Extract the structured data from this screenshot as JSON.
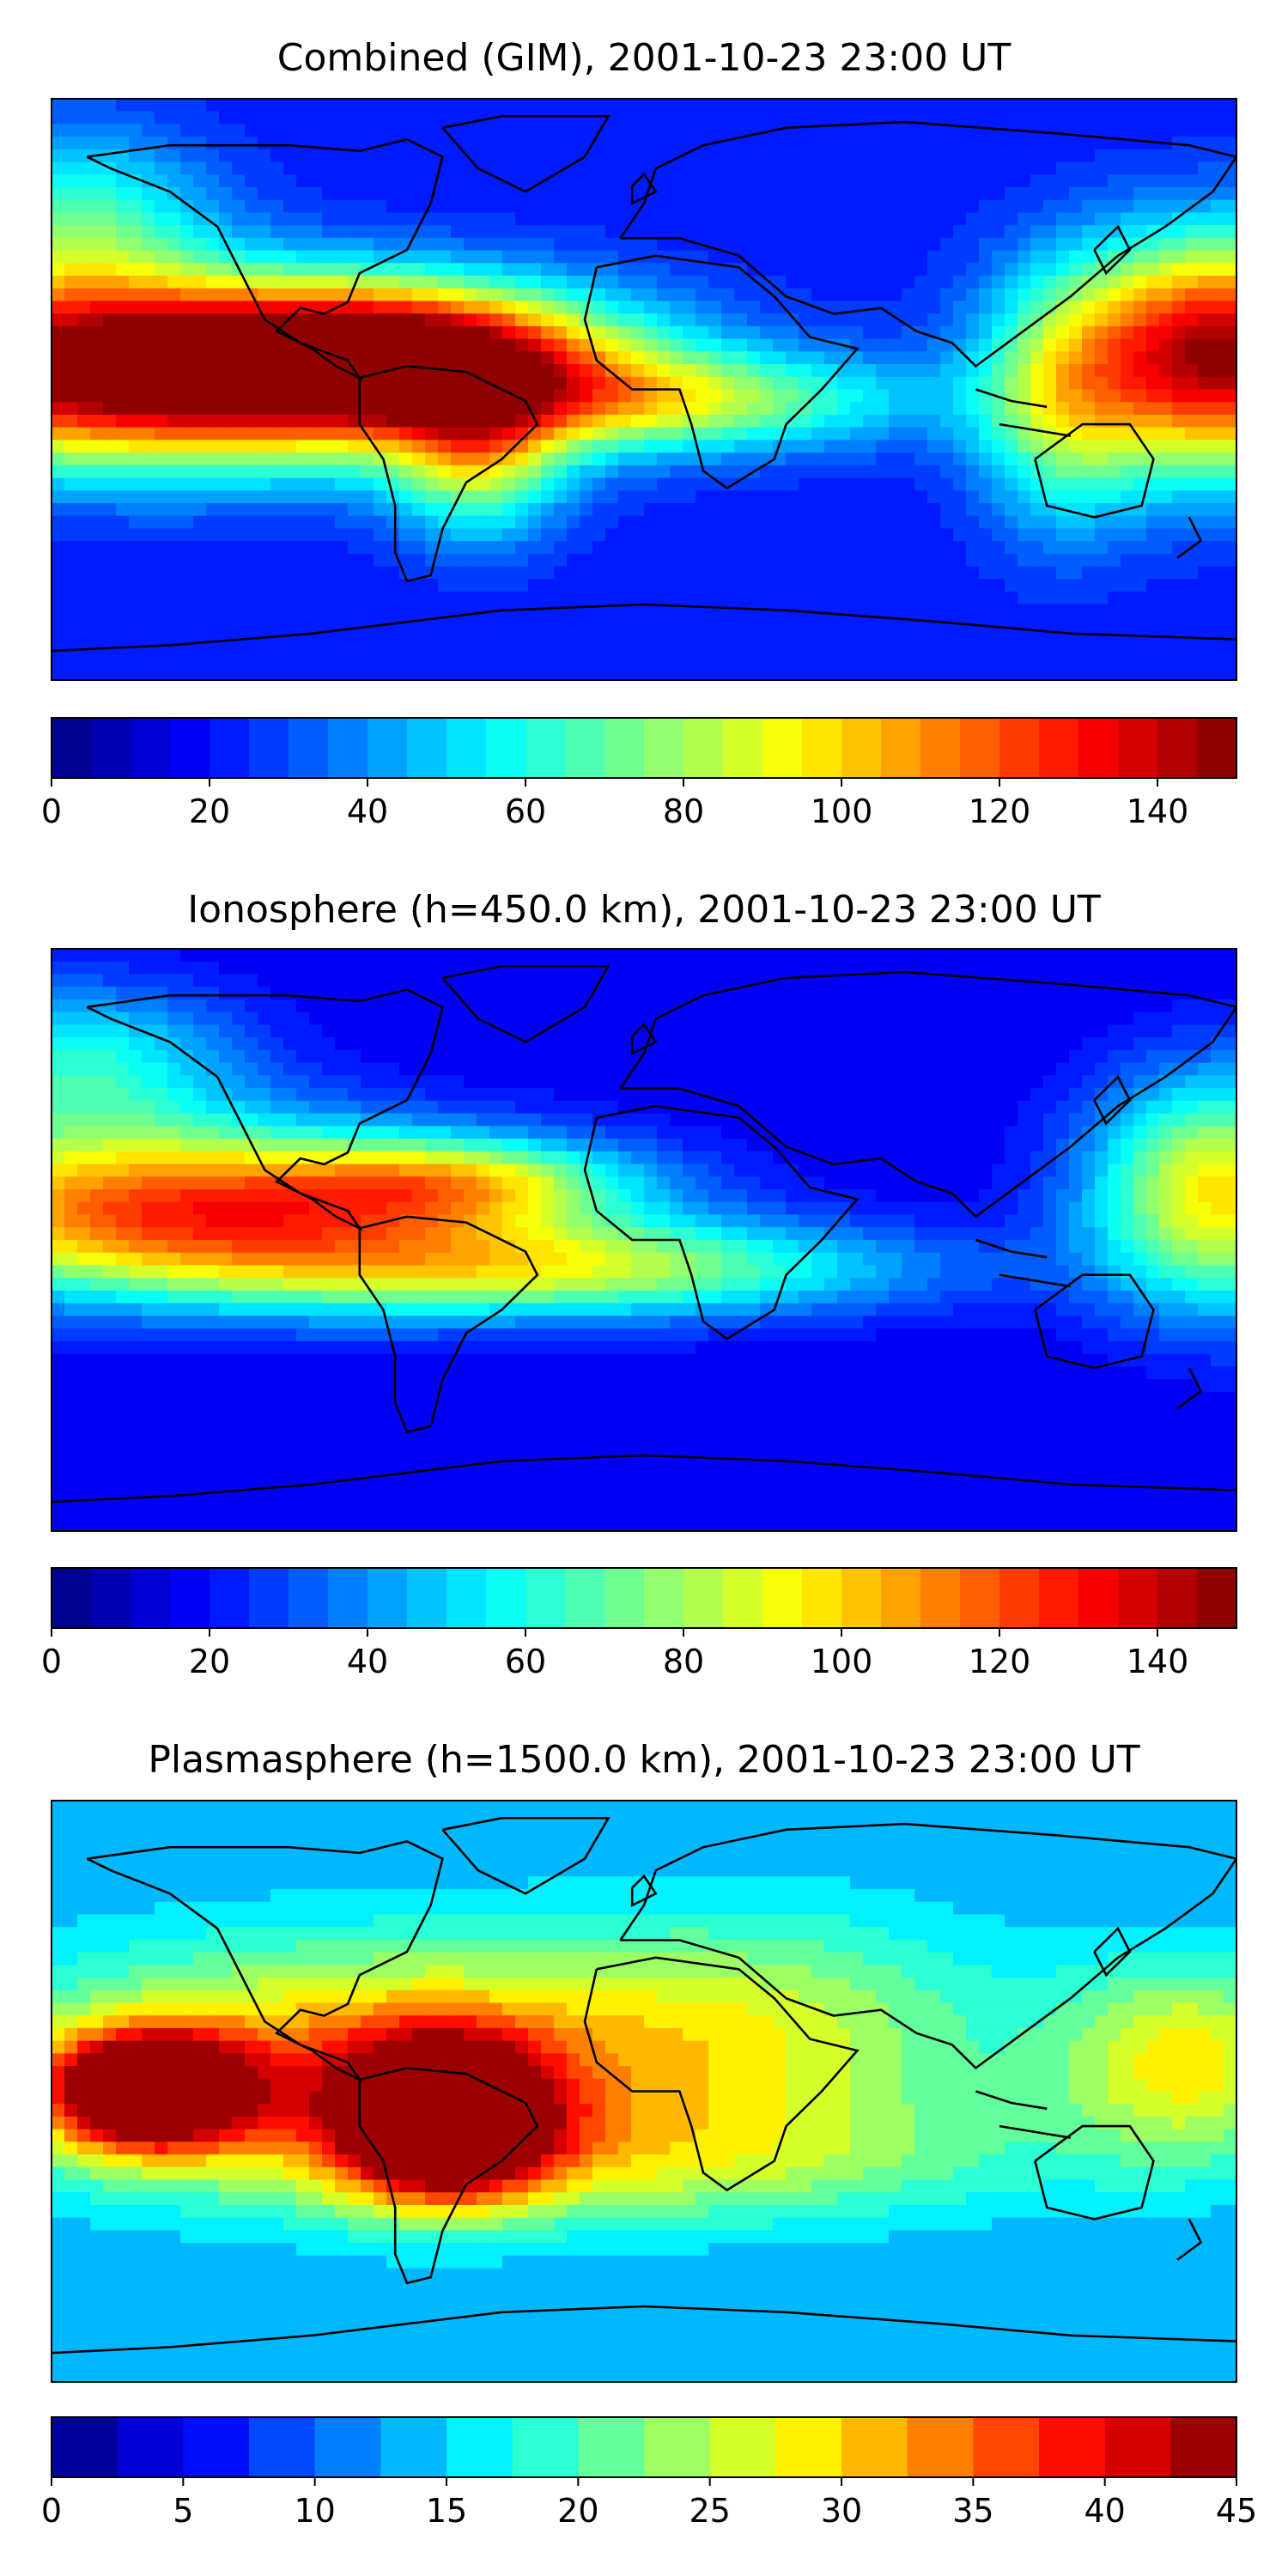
{
  "panels": [
    {
      "id": "combined",
      "title": "Combined (GIM), 2001-10-23 23:00 UT",
      "colorbar": {
        "min": 0,
        "max": 150,
        "levels": 30,
        "ticks": [
          "0",
          "20",
          "40",
          "60",
          "80",
          "100",
          "120",
          "140"
        ],
        "tick_values": [
          0,
          20,
          40,
          60,
          80,
          100,
          120,
          140
        ]
      }
    },
    {
      "id": "ionosphere",
      "title": "Ionosphere  (h=450.0 km), 2001-10-23 23:00 UT",
      "colorbar": {
        "min": 0,
        "max": 150,
        "levels": 30,
        "ticks": [
          "0",
          "20",
          "40",
          "60",
          "80",
          "100",
          "120",
          "140"
        ],
        "tick_values": [
          0,
          20,
          40,
          60,
          80,
          100,
          120,
          140
        ]
      }
    },
    {
      "id": "plasmasphere",
      "title": "Plasmasphere (h=1500.0 km), 2001-10-23 23:00 UT",
      "colorbar": {
        "min": 0,
        "max": 45,
        "levels": 18,
        "ticks": [
          "0",
          "5",
          "10",
          "15",
          "20",
          "25",
          "30",
          "35",
          "40",
          "45"
        ],
        "tick_values": [
          0,
          5,
          10,
          15,
          20,
          25,
          30,
          35,
          40,
          45
        ]
      }
    }
  ],
  "colormap": "jet"
}
